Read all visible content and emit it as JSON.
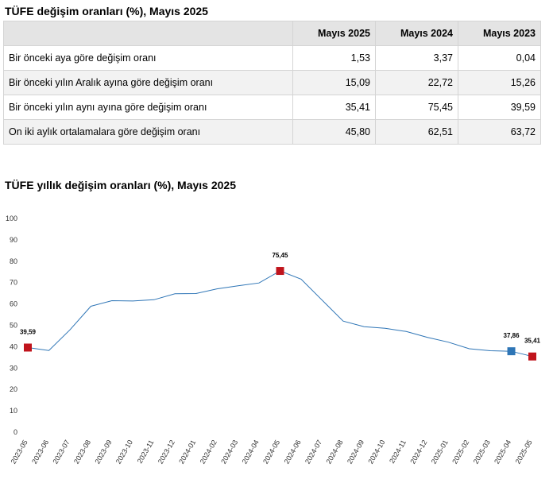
{
  "table": {
    "title": "TÜFE değişim oranları (%), Mayıs 2025",
    "headers": [
      "",
      "Mayıs 2025",
      "Mayıs 2024",
      "Mayıs 2023"
    ],
    "rows": [
      {
        "label": "Bir önceki aya göre değişim oranı",
        "values": [
          "1,53",
          "3,37",
          "0,04"
        ]
      },
      {
        "label": "Bir önceki yılın Aralık ayına göre değişim oranı",
        "values": [
          "15,09",
          "22,72",
          "15,26"
        ]
      },
      {
        "label": "Bir önceki yılın aynı ayına göre değişim oranı",
        "values": [
          "35,41",
          "75,45",
          "39,59"
        ]
      },
      {
        "label": "On iki aylık ortalamalara göre değişim oranı",
        "values": [
          "45,80",
          "62,51",
          "63,72"
        ]
      }
    ]
  },
  "chart_data": {
    "type": "line",
    "title": "TÜFE yıllık değişim oranları (%), Mayıs 2025",
    "xlabel": "",
    "ylabel": "",
    "ylim": [
      0,
      100
    ],
    "yticks": [
      0,
      10,
      20,
      30,
      40,
      50,
      60,
      70,
      80,
      90,
      100
    ],
    "grid": false,
    "line_color": "#2e75b6",
    "categories": [
      "2023-05",
      "2023-06",
      "2023-07",
      "2023-08",
      "2023-09",
      "2023-10",
      "2023-11",
      "2023-12",
      "2024-01",
      "2024-02",
      "2024-03",
      "2024-04",
      "2024-05",
      "2024-06",
      "2024-07",
      "2024-08",
      "2024-09",
      "2024-10",
      "2024-11",
      "2024-12",
      "2025-01",
      "2025-02",
      "2025-03",
      "2025-04",
      "2025-05"
    ],
    "values": [
      39.59,
      38.21,
      47.83,
      58.94,
      61.53,
      61.36,
      61.98,
      64.77,
      64.86,
      67.07,
      68.5,
      69.8,
      75.45,
      71.6,
      61.78,
      51.97,
      49.38,
      48.58,
      47.09,
      44.38,
      42.12,
      39.05,
      38.1,
      37.86,
      35.41
    ],
    "markers": [
      {
        "index": 0,
        "label": "39,59",
        "color": "#c0141c"
      },
      {
        "index": 12,
        "label": "75,45",
        "color": "#c0141c"
      },
      {
        "index": 23,
        "label": "37,86",
        "color": "#2e75b6"
      },
      {
        "index": 24,
        "label": "35,41",
        "color": "#c0141c"
      }
    ]
  }
}
